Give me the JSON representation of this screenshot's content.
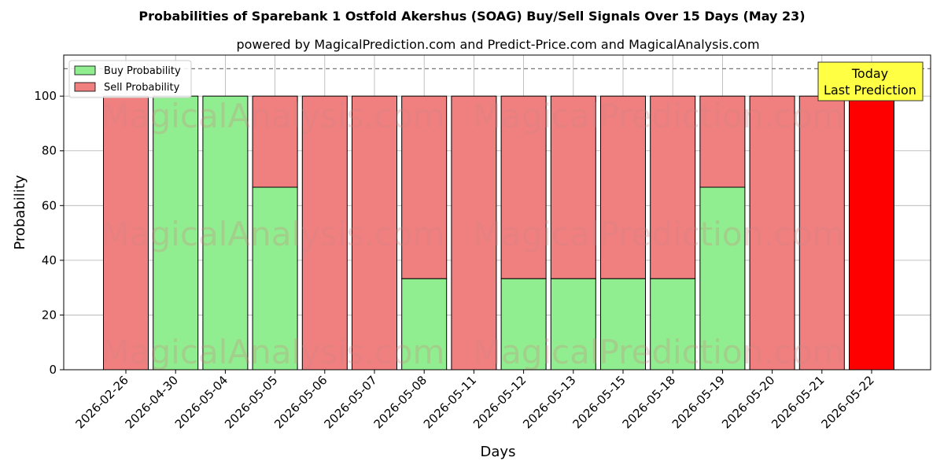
{
  "chart_data": {
    "type": "bar",
    "stacked": true,
    "title": "Probabilities of Sparebank 1 Ostfold Akershus (SOAG) Buy/Sell Signals Over 15 Days (May 23)",
    "subtitle": "powered by MagicalPrediction.com and Predict-Price.com and MagicalAnalysis.com",
    "xlabel": "Days",
    "ylabel": "Probability",
    "ylim": [
      0,
      115
    ],
    "yticks": [
      0,
      20,
      40,
      60,
      80,
      100
    ],
    "grid": true,
    "legend_position": "top-left",
    "reference_line": {
      "y": 110,
      "style": "dashed"
    },
    "categories": [
      "2026-02-26",
      "2026-04-30",
      "2026-05-04",
      "2026-05-05",
      "2026-05-06",
      "2026-05-07",
      "2026-05-08",
      "2026-05-11",
      "2026-05-12",
      "2026-05-13",
      "2026-05-15",
      "2026-05-18",
      "2026-05-19",
      "2026-05-20",
      "2026-05-21",
      "2026-05-22"
    ],
    "series": [
      {
        "name": "Buy Probability",
        "color": "#90ee90",
        "values": [
          0,
          100,
          100,
          66.7,
          0,
          0,
          33.3,
          0,
          33.3,
          33.3,
          33.3,
          33.3,
          66.7,
          0,
          0,
          0
        ]
      },
      {
        "name": "Sell Probability",
        "color": "#f08080",
        "values": [
          100,
          0,
          0,
          33.3,
          100,
          100,
          66.7,
          100,
          66.7,
          66.7,
          66.7,
          66.7,
          33.3,
          100,
          100,
          100
        ]
      }
    ],
    "highlight": {
      "category": "2026-05-22",
      "color": "#ff0000"
    },
    "annotation": {
      "lines": [
        "Today",
        "Last Prediction"
      ],
      "background": "#ffff44"
    },
    "watermarks": [
      "MagicalAnalysis.com",
      "MagicalPrediction.com"
    ]
  }
}
